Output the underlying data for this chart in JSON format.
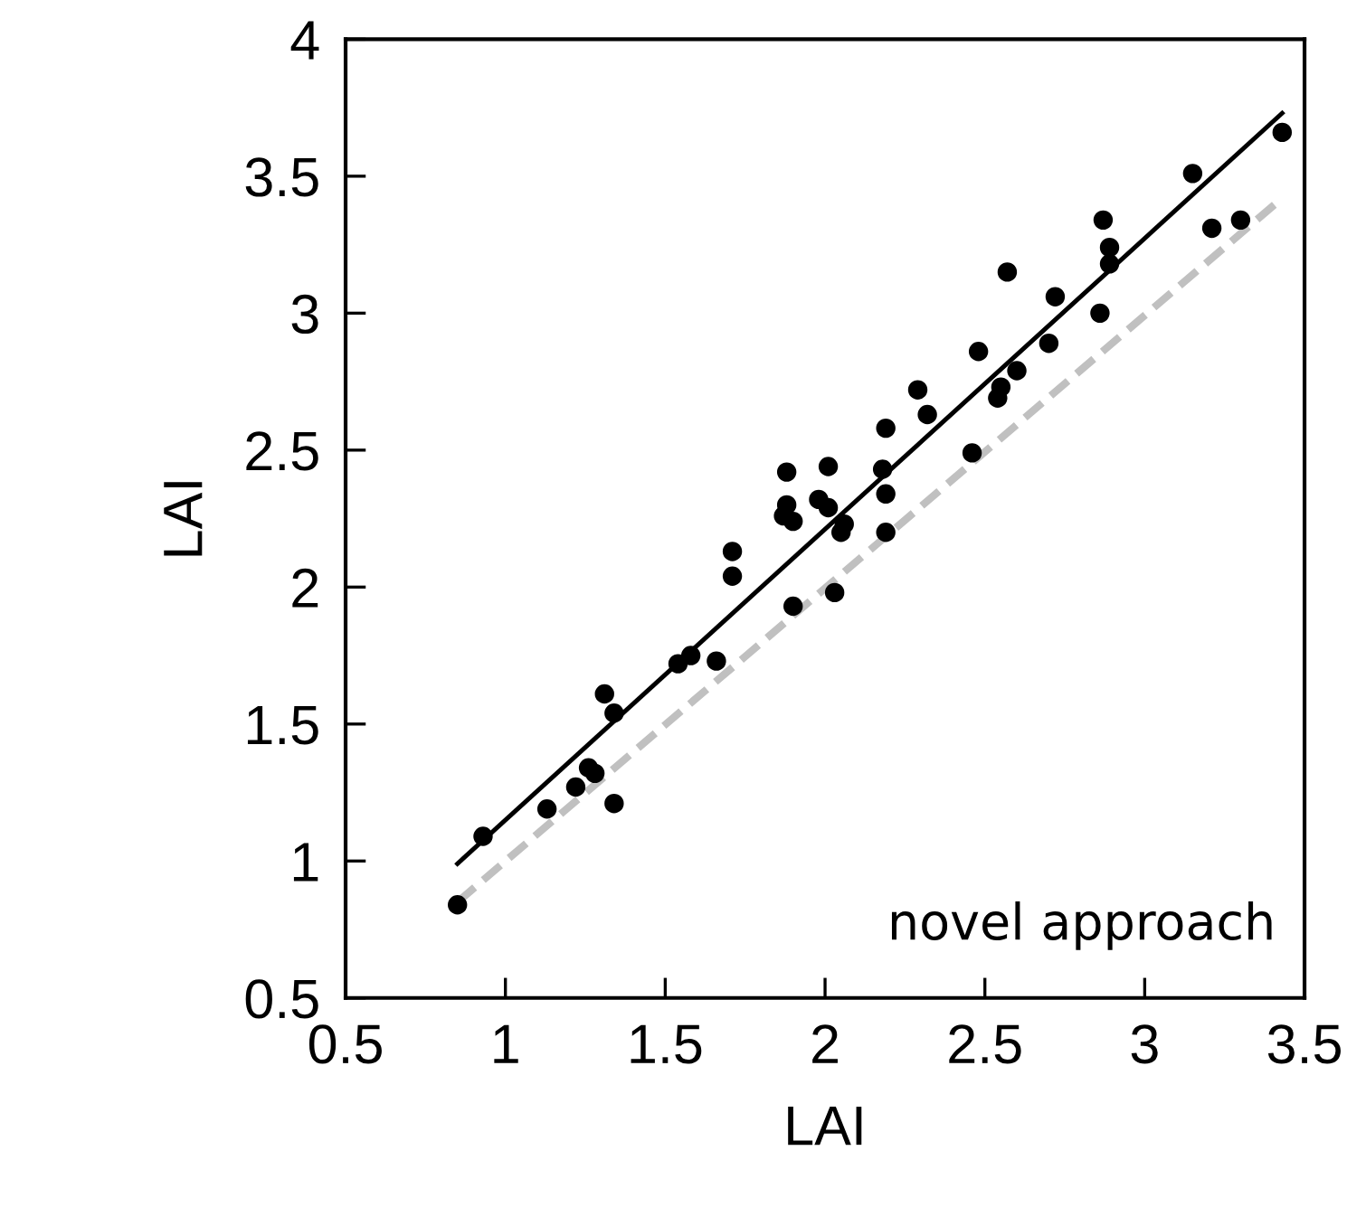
{
  "chart_data": {
    "type": "scatter",
    "xlabel": "LAI",
    "ylabel": "LAI",
    "annotations": [
      "novel approach"
    ],
    "xlim": [
      0.5,
      3.5
    ],
    "ylim": [
      0.5,
      4
    ],
    "xticks": [
      0.5,
      1,
      1.5,
      2,
      2.5,
      3,
      3.5
    ],
    "yticks": [
      0.5,
      1,
      1.5,
      2,
      2.5,
      3,
      3.5,
      4
    ],
    "grid": false,
    "legend": false,
    "marker": "circle",
    "series": [
      {
        "color": "#000000",
        "x": [
          0.85,
          0.93,
          1.13,
          1.22,
          1.26,
          1.28,
          1.34,
          1.31,
          1.34,
          1.54,
          1.58,
          1.66,
          1.71,
          1.71,
          1.9,
          2.03,
          1.88,
          2.01,
          1.88,
          1.87,
          1.9,
          1.98,
          2.01,
          2.06,
          2.05,
          2.19,
          2.18,
          2.19,
          2.19,
          2.29,
          2.32,
          2.46,
          2.48,
          2.54,
          2.55,
          2.6,
          2.57,
          2.7,
          2.72,
          2.86,
          2.87,
          2.89,
          2.89,
          3.15,
          3.21,
          3.3,
          3.43
        ],
        "values": [
          0.84,
          1.09,
          1.19,
          1.27,
          1.34,
          1.32,
          1.21,
          1.61,
          1.54,
          1.72,
          1.75,
          1.73,
          2.13,
          2.04,
          1.93,
          1.98,
          2.42,
          2.44,
          2.3,
          2.26,
          2.24,
          2.32,
          2.29,
          2.23,
          2.2,
          2.58,
          2.43,
          2.34,
          2.2,
          2.72,
          2.63,
          2.49,
          2.86,
          2.69,
          2.73,
          2.79,
          3.15,
          2.89,
          3.06,
          3.0,
          3.34,
          3.24,
          3.18,
          3.51,
          3.31,
          3.34,
          3.66
        ]
      },
      {
        "type": "line",
        "color": "#000000",
        "line_style": "solid",
        "marker": "none",
        "x": [
          0.85,
          3.43
        ],
        "values": [
          0.99,
          3.73
        ]
      },
      {
        "type": "line",
        "color": "#c0c0c0",
        "line_style": "dashed",
        "marker": "none",
        "x": [
          0.85,
          3.42
        ],
        "values": [
          0.85,
          3.41
        ]
      }
    ]
  }
}
